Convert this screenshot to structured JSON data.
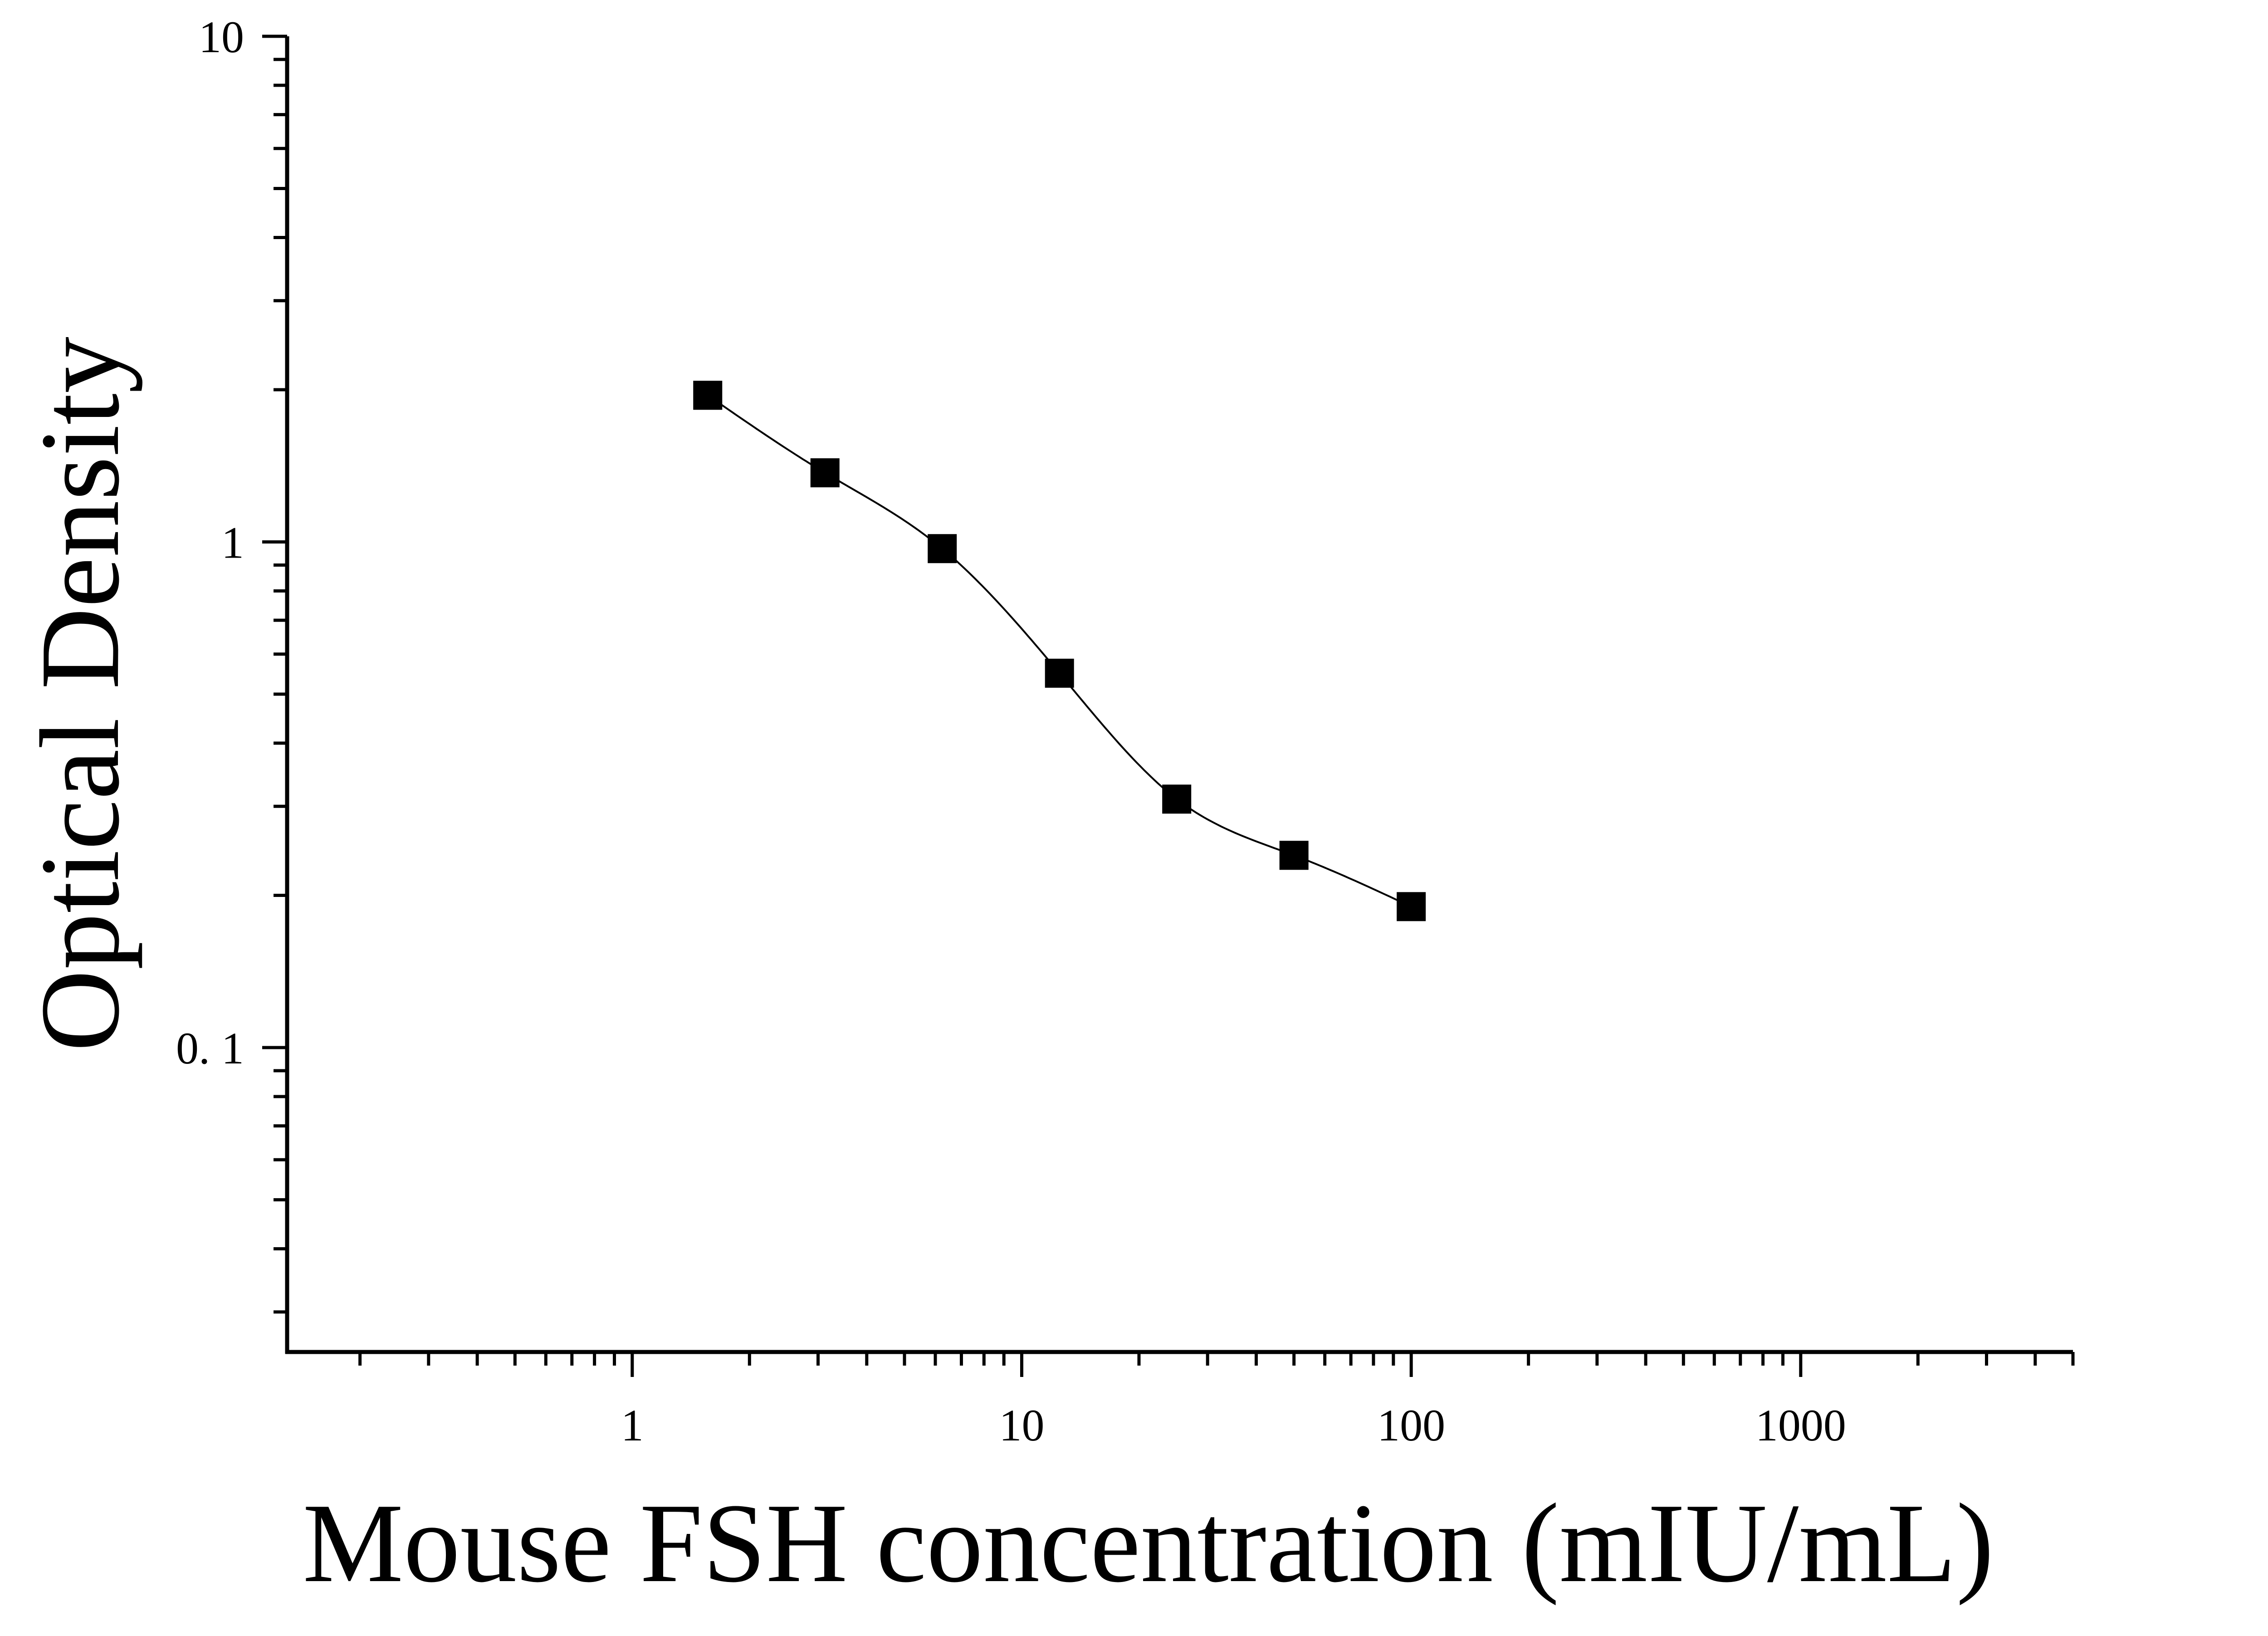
{
  "chart_data": {
    "type": "scatter",
    "xlabel": "Mouse FSH concentration (mIU/mL)",
    "ylabel": "Optical Density",
    "x_scale": "log",
    "y_scale": "log",
    "xlim": [
      0.13,
      5000
    ],
    "ylim": [
      0.025,
      10
    ],
    "x_ticks": [
      1,
      10,
      100,
      1000
    ],
    "x_tick_labels": [
      "1",
      "10",
      "100",
      "1000"
    ],
    "y_ticks": [
      0.1,
      1,
      10
    ],
    "y_tick_labels": [
      "0. 1",
      "1",
      "10"
    ],
    "grid": false,
    "legend": "none",
    "series": [
      {
        "marker": "square",
        "color": "#000000",
        "x": [
          1.5625,
          3.125,
          6.25,
          12.5,
          25,
          50,
          100
        ],
        "y": [
          1.95,
          1.37,
          0.97,
          0.55,
          0.31,
          0.24,
          0.19
        ]
      }
    ],
    "fit_curve": {
      "type": "4PL",
      "color": "#000000",
      "x_range": [
        1.5625,
        100
      ]
    }
  }
}
